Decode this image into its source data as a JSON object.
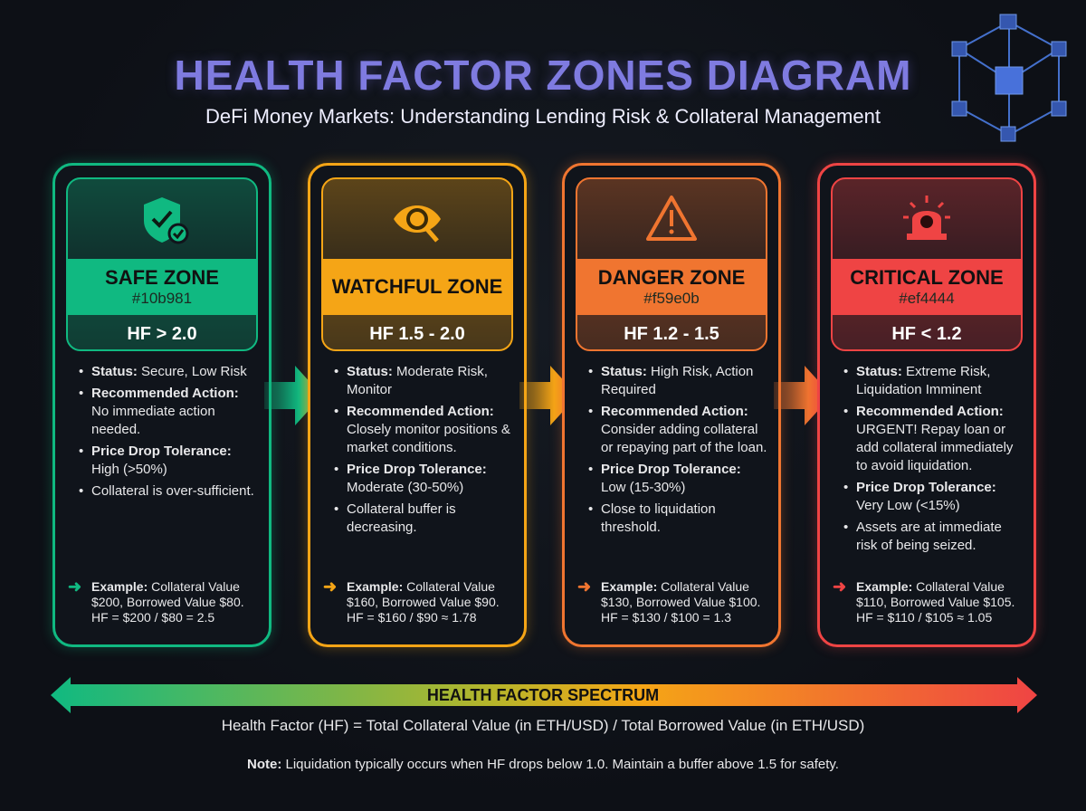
{
  "header": {
    "title": "HEALTH FACTOR ZONES DIAGRAM",
    "subtitle": "DeFi Money Markets: Understanding Lending Risk & Collateral Management"
  },
  "zones": [
    {
      "name": "SAFE ZONE",
      "hex": "#10b981",
      "range": "HF > 2.0",
      "color": "#10b981",
      "icon": "shield-check-icon",
      "items": [
        {
          "label": "Status:",
          "text": " Secure, Low Risk"
        },
        {
          "label": "Recommended Action:",
          "text": " No immediate action needed."
        },
        {
          "label": "Price Drop Tolerance:",
          "text": " High (>50%)"
        },
        {
          "label": "",
          "text": "Collateral is over-sufficient."
        }
      ],
      "example": {
        "label": "Example:",
        "text": " Collateral Value $200, Borrowed Value $80. HF = $200 / $80 = 2.5"
      }
    },
    {
      "name": "WATCHFUL ZONE",
      "hex": "",
      "range": "HF 1.5 - 2.0",
      "color": "#f5a516",
      "icon": "eye-magnifier-icon",
      "items": [
        {
          "label": "Status:",
          "text": " Moderate Risk, Monitor"
        },
        {
          "label": "Recommended Action:",
          "text": " Closely monitor positions & market conditions."
        },
        {
          "label": "Price Drop Tolerance:",
          "text": " Moderate (30-50%)"
        },
        {
          "label": "",
          "text": "Collateral buffer is decreasing."
        }
      ],
      "example": {
        "label": "Example:",
        "text": " Collateral Value $160, Borrowed Value $90. HF = $160 / $90 ≈ 1.78"
      }
    },
    {
      "name": "DANGER ZONE",
      "hex": "#f59e0b",
      "range": "HF 1.2 - 1.5",
      "color": "#f07530",
      "icon": "warning-triangle-icon",
      "items": [
        {
          "label": "Status:",
          "text": " High Risk, Action Required"
        },
        {
          "label": "Recommended Action:",
          "text": " Consider adding collateral or repaying part of the loan."
        },
        {
          "label": "Price Drop Tolerance:",
          "text": " Low (15-30%)"
        },
        {
          "label": "",
          "text": "Close to liquidation threshold."
        }
      ],
      "example": {
        "label": "Example:",
        "text": " Collateral Value $130, Borrowed Value $100. HF = $130 / $100 = 1.3"
      }
    },
    {
      "name": "CRITICAL ZONE",
      "hex": "#ef4444",
      "range": "HF < 1.2",
      "color": "#ef4444",
      "icon": "siren-skull-icon",
      "items": [
        {
          "label": "Status:",
          "text": " Extreme Risk, Liquidation Imminent"
        },
        {
          "label": "Recommended Action:",
          "text": " URGENT! Repay loan or add collateral immediately to avoid liquidation."
        },
        {
          "label": "Price Drop Tolerance:",
          "text": " Very Low (<15%)"
        },
        {
          "label": "",
          "text": "Assets are at immediate risk of being seized."
        }
      ],
      "example": {
        "label": "Example:",
        "text": " Collateral Value $110, Borrowed Value $105. HF = $110 / $105 ≈ 1.05"
      }
    }
  ],
  "footer": {
    "spectrum_label": "HEALTH FACTOR SPECTRUM",
    "formula": "Health Factor (HF) = Total Collateral Value (in ETH/USD) / Total Borrowed Value (in ETH/USD)",
    "note_label": "Note:",
    "note_text": " Liquidation typically occurs when HF drops below 1.0. Maintain a buffer above 1.5 for safety."
  }
}
